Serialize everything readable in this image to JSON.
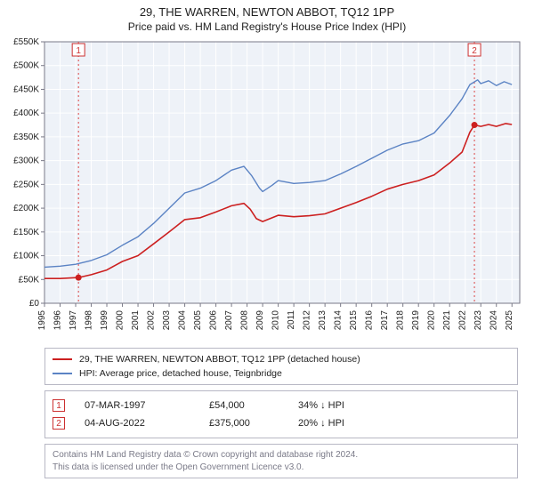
{
  "title": "29, THE WARREN, NEWTON ABBOT, TQ12 1PP",
  "subtitle": "Price paid vs. HM Land Registry's House Price Index (HPI)",
  "chart": {
    "type": "line",
    "background_color": "#eef2f8",
    "outer_color": "#ffffff",
    "axis_color": "#7a7a88",
    "grid_color": "#ffffff",
    "tick_label_color": "#222222",
    "tick_fontsize": 10,
    "marker_line_color": "#d44",
    "marker_badge_border": "#cc3030",
    "marker_badge_text": "#cc3030",
    "xlim": [
      1995,
      2025.5
    ],
    "ylim": [
      0,
      550
    ],
    "yticks": [
      0,
      50,
      100,
      150,
      200,
      250,
      300,
      350,
      400,
      450,
      500,
      550
    ],
    "ytick_labels": [
      "£0",
      "£50K",
      "£100K",
      "£150K",
      "£200K",
      "£250K",
      "£300K",
      "£350K",
      "£400K",
      "£450K",
      "£500K",
      "£550K"
    ],
    "xticks": [
      1995,
      1996,
      1997,
      1998,
      1999,
      2000,
      2001,
      2002,
      2003,
      2004,
      2005,
      2006,
      2007,
      2008,
      2009,
      2010,
      2011,
      2012,
      2013,
      2014,
      2015,
      2016,
      2017,
      2018,
      2019,
      2020,
      2021,
      2022,
      2023,
      2024,
      2025
    ],
    "series": [
      {
        "name": "price_paid",
        "label": "29, THE WARREN, NEWTON ABBOT, TQ12 1PP (detached house)",
        "color": "#cc2020",
        "line_width": 1.6,
        "points": [
          [
            1995,
            52
          ],
          [
            1996,
            52
          ],
          [
            1997.18,
            54
          ],
          [
            1998,
            60
          ],
          [
            1999,
            70
          ],
          [
            2000,
            88
          ],
          [
            2001,
            100
          ],
          [
            2002,
            125
          ],
          [
            2003,
            150
          ],
          [
            2004,
            176
          ],
          [
            2005,
            180
          ],
          [
            2006,
            192
          ],
          [
            2007,
            205
          ],
          [
            2007.8,
            210
          ],
          [
            2008.2,
            198
          ],
          [
            2008.6,
            178
          ],
          [
            2009,
            172
          ],
          [
            2010,
            185
          ],
          [
            2011,
            182
          ],
          [
            2012,
            184
          ],
          [
            2013,
            188
          ],
          [
            2014,
            200
          ],
          [
            2015,
            212
          ],
          [
            2016,
            225
          ],
          [
            2017,
            240
          ],
          [
            2018,
            250
          ],
          [
            2019,
            258
          ],
          [
            2020,
            270
          ],
          [
            2021,
            295
          ],
          [
            2021.8,
            318
          ],
          [
            2022.3,
            360
          ],
          [
            2022.59,
            375
          ],
          [
            2023,
            372
          ],
          [
            2023.5,
            376
          ],
          [
            2024,
            372
          ],
          [
            2024.6,
            378
          ],
          [
            2025,
            376
          ]
        ]
      },
      {
        "name": "hpi",
        "label": "HPI: Average price, detached house, Teignbridge",
        "color": "#5b83c4",
        "line_width": 1.4,
        "points": [
          [
            1995,
            76
          ],
          [
            1996,
            78
          ],
          [
            1997,
            82
          ],
          [
            1998,
            90
          ],
          [
            1999,
            102
          ],
          [
            2000,
            122
          ],
          [
            2001,
            140
          ],
          [
            2002,
            168
          ],
          [
            2003,
            200
          ],
          [
            2004,
            232
          ],
          [
            2005,
            242
          ],
          [
            2006,
            258
          ],
          [
            2007,
            280
          ],
          [
            2007.8,
            288
          ],
          [
            2008.3,
            268
          ],
          [
            2008.8,
            242
          ],
          [
            2009,
            235
          ],
          [
            2009.6,
            248
          ],
          [
            2010,
            258
          ],
          [
            2011,
            252
          ],
          [
            2012,
            254
          ],
          [
            2013,
            258
          ],
          [
            2014,
            272
          ],
          [
            2015,
            288
          ],
          [
            2016,
            305
          ],
          [
            2017,
            322
          ],
          [
            2018,
            335
          ],
          [
            2019,
            342
          ],
          [
            2020,
            358
          ],
          [
            2021,
            395
          ],
          [
            2021.8,
            430
          ],
          [
            2022.3,
            460
          ],
          [
            2022.8,
            470
          ],
          [
            2023,
            462
          ],
          [
            2023.5,
            468
          ],
          [
            2024,
            458
          ],
          [
            2024.5,
            466
          ],
          [
            2025,
            460
          ]
        ]
      }
    ],
    "sale_markers": [
      {
        "badge": "1",
        "x": 1997.18,
        "y": 54
      },
      {
        "badge": "2",
        "x": 2022.59,
        "y": 375
      }
    ]
  },
  "legend": {
    "s0": "29, THE WARREN, NEWTON ABBOT, TQ12 1PP (detached house)",
    "s1": "HPI: Average price, detached house, Teignbridge"
  },
  "markers_table": {
    "rows": [
      {
        "badge": "1",
        "date": "07-MAR-1997",
        "price": "£54,000",
        "delta": "34% ↓ HPI"
      },
      {
        "badge": "2",
        "date": "04-AUG-2022",
        "price": "£375,000",
        "delta": "20% ↓ HPI"
      }
    ]
  },
  "attribution": {
    "line1": "Contains HM Land Registry data © Crown copyright and database right 2024.",
    "line2": "This data is licensed under the Open Government Licence v3.0."
  }
}
